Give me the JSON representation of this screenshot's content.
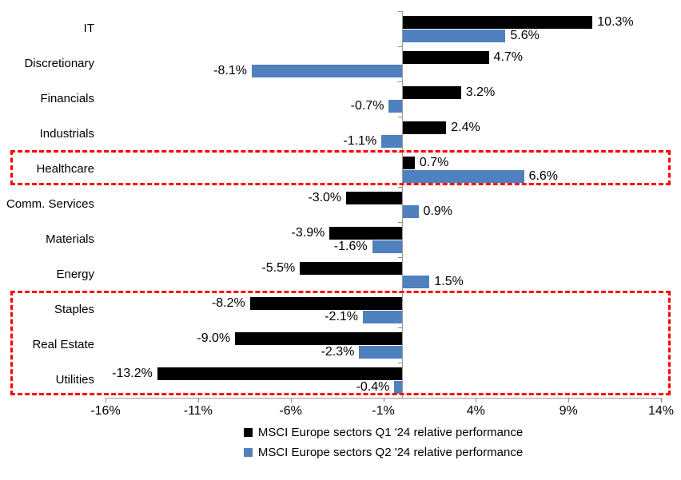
{
  "chart_data": {
    "type": "bar",
    "orientation": "horizontal",
    "categories": [
      "IT",
      "Discretionary",
      "Financials",
      "Industrials",
      "Healthcare",
      "Comm. Services",
      "Materials",
      "Energy",
      "Staples",
      "Real Estate",
      "Utilities"
    ],
    "series": [
      {
        "name": "MSCI Europe sectors Q1 '24 relative performance",
        "color": "#000000",
        "values": [
          10.3,
          4.7,
          3.2,
          2.4,
          0.7,
          -3.0,
          -3.9,
          -5.5,
          -8.2,
          -9.0,
          -13.2
        ],
        "labels": [
          "10.3%",
          "4.7%",
          "3.2%",
          "2.4%",
          "0.7%",
          "-3.0%",
          "-3.9%",
          "-5.5%",
          "-8.2%",
          "-9.0%",
          "-13.2%"
        ]
      },
      {
        "name": "MSCI Europe sectors Q2 '24 relative performance",
        "color": "#4e81bd",
        "values": [
          5.6,
          -8.1,
          -0.7,
          -1.1,
          6.6,
          0.9,
          -1.6,
          1.5,
          -2.1,
          -2.3,
          -0.4
        ],
        "labels": [
          "5.6%",
          "-8.1%",
          "-0.7%",
          "-1.1%",
          "6.6%",
          "0.9%",
          "-1.6%",
          "1.5%",
          "-2.1%",
          "-2.3%",
          "-0.4%"
        ]
      }
    ],
    "x_ticks": [
      {
        "value": -16,
        "label": "-16%"
      },
      {
        "value": -11,
        "label": "-11%"
      },
      {
        "value": -6,
        "label": "-6%"
      },
      {
        "value": -1,
        "label": "-1%"
      },
      {
        "value": 4,
        "label": "4%"
      },
      {
        "value": 9,
        "label": "9%"
      },
      {
        "value": 14,
        "label": "14%"
      }
    ],
    "xlim": [
      -16,
      14
    ],
    "grid": false,
    "legend_position": "bottom-center",
    "axis_color": "#9a9a9a",
    "highlight_color": "#ff0000",
    "highlight_boxes": [
      {
        "rows": [
          4,
          4
        ],
        "categories": [
          "Healthcare"
        ]
      },
      {
        "rows": [
          8,
          10
        ],
        "categories": [
          "Staples",
          "Real Estate",
          "Utilities"
        ]
      }
    ]
  }
}
